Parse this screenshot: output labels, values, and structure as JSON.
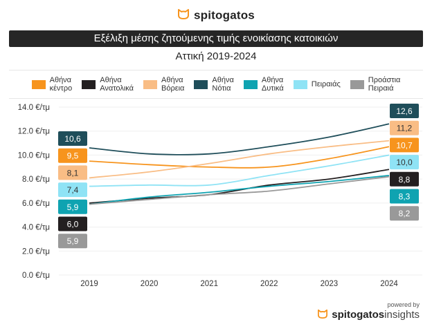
{
  "brand": {
    "logo_text": "spitogatos",
    "logo_color": "#F7941D",
    "powered_by": "powered by",
    "footer_brand": "spitogatos",
    "footer_suffix": "insights"
  },
  "chart_data": {
    "type": "line",
    "title": "Εξέλιξη μέσης ζητούμενης τιμής ενοικίασης κατοικιών",
    "subtitle": "Αττική 2019-2024",
    "xlabel": "",
    "ylabel": "",
    "x": [
      "2019",
      "2020",
      "2021",
      "2022",
      "2023",
      "2024"
    ],
    "ylim": [
      0,
      14
    ],
    "yticks": [
      0,
      2,
      4,
      6,
      8,
      10,
      12,
      14
    ],
    "ytick_labels": [
      "0.0 €/τμ",
      "2.0 €/τμ",
      "4.0 €/τμ",
      "6.0 €/τμ",
      "8.0 €/τμ",
      "10.0 €/τμ",
      "12.0 €/τμ",
      "14.0 €/τμ"
    ],
    "grid": true,
    "legend_position": "top",
    "series": [
      {
        "name": "Αθήνα\nκέντρο",
        "color": "#F7941D",
        "label_text_color": "#ffffff",
        "values": [
          9.5,
          9.2,
          9.0,
          9.0,
          9.7,
          10.7
        ],
        "start_label": "9,5",
        "end_label": "10,7"
      },
      {
        "name": "Αθήνα\nΑνατολικά",
        "color": "#231F20",
        "label_text_color": "#ffffff",
        "values": [
          6.0,
          6.4,
          6.7,
          7.5,
          8.0,
          8.8
        ],
        "start_label": "6,0",
        "end_label": "8,8"
      },
      {
        "name": "Αθήνα\nΒόρεια",
        "color": "#F9BD85",
        "label_text_color": "#333333",
        "values": [
          8.1,
          8.6,
          9.3,
          10.1,
          10.7,
          11.2
        ],
        "start_label": "8,1",
        "end_label": "11,2"
      },
      {
        "name": "Αθήνα\nΝότια",
        "color": "#1F4E5A",
        "label_text_color": "#ffffff",
        "values": [
          10.6,
          10.1,
          10.1,
          10.7,
          11.5,
          12.6
        ],
        "start_label": "10,6",
        "end_label": "12,6"
      },
      {
        "name": "Αθήνα\nΔυτικά",
        "color": "#0FA3B1",
        "label_text_color": "#ffffff",
        "values": [
          5.9,
          6.5,
          6.9,
          7.4,
          7.8,
          8.3
        ],
        "start_label": "5,9",
        "end_label": "8,3"
      },
      {
        "name": "Πειραιάς",
        "color": "#8FE3F5",
        "label_text_color": "#333333",
        "values": [
          7.4,
          7.5,
          7.5,
          8.3,
          9.1,
          10.0
        ],
        "start_label": "7,4",
        "end_label": "10,0"
      },
      {
        "name": "Προάστια\nΠειραιά",
        "color": "#999999",
        "label_text_color": "#ffffff",
        "values": [
          5.9,
          6.3,
          6.7,
          7.0,
          7.6,
          8.2
        ],
        "start_label": "5,9",
        "end_label": "8,2"
      }
    ],
    "start_label_order": [
      3,
      0,
      2,
      5,
      4,
      1,
      6
    ],
    "end_label_order": [
      3,
      2,
      0,
      5,
      1,
      4,
      6
    ]
  }
}
